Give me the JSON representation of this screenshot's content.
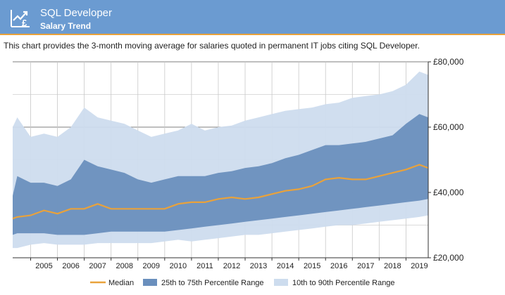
{
  "header": {
    "title": "SQL Developer",
    "subtitle": "Salary Trend",
    "icon": "chart-pound-icon",
    "background": "#6b9bd1",
    "accent": "#e9a23b"
  },
  "description": "This chart provides the 3-month moving average for salaries quoted in permanent IT jobs citing SQL Developer.",
  "chart_data": {
    "type": "area",
    "x_ticks": [
      "2005",
      "2006",
      "2007",
      "2008",
      "2009",
      "2010",
      "2011",
      "2012",
      "2013",
      "2014",
      "2015",
      "2016",
      "2017",
      "2018",
      "2019"
    ],
    "y_ticks": [
      "£20,000",
      "£40,000",
      "£60,000",
      "£80,000"
    ],
    "ylim": [
      20000,
      80000
    ],
    "xlim": [
      2004.33,
      2019.83
    ],
    "grid": true,
    "legend_position": "bottom",
    "colors": {
      "median": "#e9a23b",
      "p25_75": "#6a8fbd",
      "p10_90": "#cddcee"
    },
    "legend": [
      "Median",
      "25th to 75th Percentile Range",
      "10th to 90th Percentile Range"
    ],
    "x": [
      2004.33,
      2004.5,
      2005,
      2005.5,
      2006,
      2006.5,
      2007,
      2007.5,
      2008,
      2008.5,
      2009,
      2009.5,
      2010,
      2010.5,
      2011,
      2011.5,
      2012,
      2012.5,
      2013,
      2013.5,
      2014,
      2014.5,
      2015,
      2015.5,
      2016,
      2016.5,
      2017,
      2017.5,
      2018,
      2018.5,
      2019,
      2019.5,
      2019.83
    ],
    "series": [
      {
        "name": "Median",
        "values": [
          32000,
          32500,
          33000,
          34500,
          33500,
          35000,
          35000,
          36500,
          35000,
          35000,
          35000,
          35000,
          35000,
          36500,
          37000,
          37000,
          38000,
          38500,
          38000,
          38500,
          39500,
          40500,
          41000,
          42000,
          44000,
          44500,
          44000,
          44000,
          45000,
          46000,
          47000,
          48500,
          47500
        ]
      },
      {
        "name": "25th Percentile",
        "values": [
          27000,
          27500,
          27500,
          27500,
          27000,
          27000,
          27000,
          27500,
          28000,
          28000,
          28000,
          28000,
          28000,
          28500,
          29000,
          29500,
          30000,
          30500,
          31000,
          31500,
          32000,
          32500,
          33000,
          33500,
          34000,
          34500,
          35000,
          35500,
          36000,
          36500,
          37000,
          37500,
          38000
        ]
      },
      {
        "name": "75th Percentile",
        "values": [
          39000,
          45000,
          43000,
          43000,
          42000,
          44000,
          50000,
          48000,
          47000,
          46000,
          44000,
          43000,
          44000,
          45000,
          45000,
          45000,
          46000,
          46500,
          47500,
          48000,
          49000,
          50500,
          51500,
          53000,
          54500,
          54500,
          55000,
          55500,
          56500,
          57500,
          61000,
          64000,
          63000
        ]
      },
      {
        "name": "10th Percentile",
        "values": [
          23000,
          23000,
          24000,
          24500,
          24000,
          24000,
          24000,
          24500,
          24500,
          24500,
          24500,
          24500,
          25000,
          25500,
          25000,
          25500,
          26000,
          26500,
          27000,
          27000,
          27500,
          28000,
          28500,
          29000,
          29500,
          30000,
          30000,
          30500,
          31000,
          31500,
          32000,
          32500,
          33000
        ]
      },
      {
        "name": "90th Percentile",
        "values": [
          60000,
          63000,
          57000,
          58000,
          57000,
          60000,
          66000,
          63000,
          62000,
          61000,
          59000,
          57000,
          58000,
          59000,
          61000,
          59000,
          60000,
          60500,
          62000,
          63000,
          64000,
          65000,
          65500,
          66000,
          67000,
          67500,
          69000,
          69500,
          70000,
          71000,
          73000,
          77000,
          76000
        ]
      }
    ]
  }
}
